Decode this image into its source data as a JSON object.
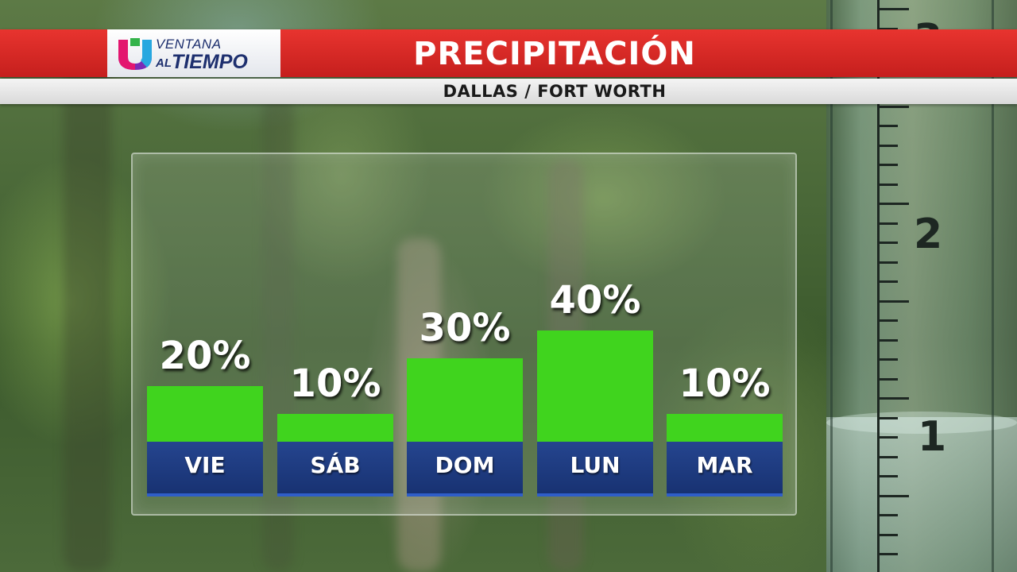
{
  "header": {
    "brand_top": "VENTANA",
    "brand_al": "AL",
    "brand_bottom": "TIEMPO",
    "title": "PRECIPITACIÓN",
    "subtitle": "DALLAS / FORT WORTH"
  },
  "colors": {
    "banner_red": "#d92a27",
    "bar_green": "#40d41e",
    "day_blue": "#1f3d84"
  },
  "chart_data": {
    "type": "bar",
    "categories": [
      "VIE",
      "SÁB",
      "DOM",
      "LUN",
      "MAR"
    ],
    "values": [
      20,
      10,
      30,
      40,
      10
    ],
    "value_labels": [
      "20%",
      "10%",
      "30%",
      "40%",
      "10%"
    ],
    "unit": "%",
    "ylim": [
      0,
      40
    ],
    "grid": false,
    "legend": "none"
  },
  "gauge": {
    "numbers": [
      "3",
      "2",
      "1"
    ]
  }
}
